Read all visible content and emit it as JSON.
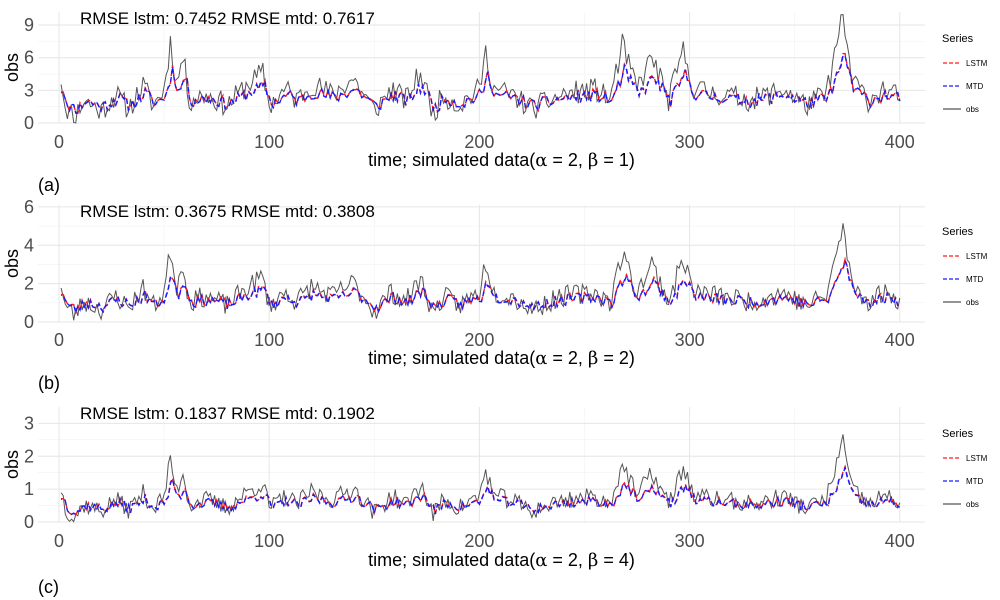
{
  "colors": {
    "lstm": "#ff1a1a",
    "mtd": "#1a1aff",
    "obs": "#555555",
    "grid": "#e6e6e6",
    "grid_minor": "#f2f2f2",
    "axis_text": "#4d4d4d"
  },
  "legend": {
    "title": "Series",
    "items": [
      "LSTM",
      "MTD",
      "obs"
    ]
  },
  "chart_data": [
    {
      "type": "line",
      "panel_label": "(a)",
      "annotation": "RMSE lstm: 0.7452 RMSE mtd: 0.7617",
      "xlabel_parts": [
        "time; simulated data(",
        "α",
        " = 2,  ",
        "β",
        " = 1)"
      ],
      "ylabel": "obs",
      "xlim": [
        -10,
        412
      ],
      "ylim": [
        0,
        10.2
      ],
      "xticks": [
        0,
        100,
        200,
        300,
        400
      ],
      "yticks": [
        0,
        3,
        6,
        9
      ],
      "grid": true,
      "legend_position": "right",
      "x_range": [
        1,
        400
      ],
      "obs_keyframes": [
        [
          1,
          4.0
        ],
        [
          3,
          1.5
        ],
        [
          7,
          0.3
        ],
        [
          12,
          2.0
        ],
        [
          20,
          1.0
        ],
        [
          27,
          2.5
        ],
        [
          33,
          1.2
        ],
        [
          40,
          3.3
        ],
        [
          45,
          1.5
        ],
        [
          50,
          3.0
        ],
        [
          53,
          7.3
        ],
        [
          56,
          3.5
        ],
        [
          59,
          6.0
        ],
        [
          62,
          2.0
        ],
        [
          70,
          2.5
        ],
        [
          80,
          1.5
        ],
        [
          90,
          3.5
        ],
        [
          97,
          4.5
        ],
        [
          100,
          1.5
        ],
        [
          108,
          3.0
        ],
        [
          113,
          2.0
        ],
        [
          120,
          3.5
        ],
        [
          130,
          2.5
        ],
        [
          140,
          4.0
        ],
        [
          150,
          1.0
        ],
        [
          158,
          3.0
        ],
        [
          165,
          2.0
        ],
        [
          172,
          4.5
        ],
        [
          178,
          0.8
        ],
        [
          183,
          2.5
        ],
        [
          190,
          1.5
        ],
        [
          200,
          3.0
        ],
        [
          203,
          6.3
        ],
        [
          207,
          3.0
        ],
        [
          215,
          2.5
        ],
        [
          225,
          1.2
        ],
        [
          240,
          2.5
        ],
        [
          255,
          3.0
        ],
        [
          262,
          2.0
        ],
        [
          268,
          7.0
        ],
        [
          275,
          3.0
        ],
        [
          282,
          6.0
        ],
        [
          290,
          2.0
        ],
        [
          297,
          6.5
        ],
        [
          302,
          3.0
        ],
        [
          315,
          2.5
        ],
        [
          330,
          2.0
        ],
        [
          345,
          3.0
        ],
        [
          355,
          1.5
        ],
        [
          365,
          2.5
        ],
        [
          373,
          9.7
        ],
        [
          377,
          4.0
        ],
        [
          385,
          2.0
        ],
        [
          392,
          3.0
        ],
        [
          400,
          2.2
        ]
      ],
      "noise_amp": 1.1,
      "floor": 0.0,
      "seed": 11,
      "pred_scale": 0.55,
      "pred_offset": 0.9
    },
    {
      "type": "line",
      "panel_label": "(b)",
      "annotation": "RMSE lstm: 0.3675 RMSE mtd: 0.3808",
      "xlabel_parts": [
        "time; simulated data(",
        "α",
        " = 2,  ",
        "β",
        " = 2)"
      ],
      "ylabel": "obs",
      "xlim": [
        -10,
        412
      ],
      "ylim": [
        0,
        6.1
      ],
      "xticks": [
        0,
        100,
        200,
        300,
        400
      ],
      "yticks": [
        0,
        2,
        4,
        6
      ],
      "grid": true,
      "legend_position": "right",
      "x_range": [
        1,
        400
      ],
      "obs_keyframes": [
        [
          1,
          2.0
        ],
        [
          3,
          0.8
        ],
        [
          7,
          0.3
        ],
        [
          12,
          1.0
        ],
        [
          20,
          0.6
        ],
        [
          27,
          1.3
        ],
        [
          33,
          0.7
        ],
        [
          40,
          1.7
        ],
        [
          45,
          0.8
        ],
        [
          50,
          1.5
        ],
        [
          53,
          3.7
        ],
        [
          56,
          1.8
        ],
        [
          59,
          3.0
        ],
        [
          62,
          1.0
        ],
        [
          70,
          1.3
        ],
        [
          80,
          0.8
        ],
        [
          90,
          1.8
        ],
        [
          97,
          2.3
        ],
        [
          100,
          0.8
        ],
        [
          108,
          1.5
        ],
        [
          113,
          1.0
        ],
        [
          120,
          1.8
        ],
        [
          130,
          1.3
        ],
        [
          140,
          2.0
        ],
        [
          150,
          0.5
        ],
        [
          158,
          1.5
        ],
        [
          165,
          1.0
        ],
        [
          172,
          2.2
        ],
        [
          178,
          0.4
        ],
        [
          183,
          1.3
        ],
        [
          190,
          0.8
        ],
        [
          200,
          1.5
        ],
        [
          203,
          3.1
        ],
        [
          207,
          1.5
        ],
        [
          215,
          1.3
        ],
        [
          225,
          0.6
        ],
        [
          240,
          1.3
        ],
        [
          255,
          1.5
        ],
        [
          262,
          1.0
        ],
        [
          268,
          3.5
        ],
        [
          275,
          1.5
        ],
        [
          282,
          3.0
        ],
        [
          290,
          1.0
        ],
        [
          297,
          3.3
        ],
        [
          302,
          1.5
        ],
        [
          315,
          1.3
        ],
        [
          330,
          1.0
        ],
        [
          345,
          1.5
        ],
        [
          355,
          0.8
        ],
        [
          365,
          1.3
        ],
        [
          373,
          4.9
        ],
        [
          377,
          2.0
        ],
        [
          385,
          1.0
        ],
        [
          392,
          1.5
        ],
        [
          400,
          1.1
        ]
      ],
      "noise_amp": 0.55,
      "floor": 0.0,
      "seed": 23,
      "pred_scale": 0.55,
      "pred_offset": 0.45
    },
    {
      "type": "line",
      "panel_label": "(c)",
      "annotation": "RMSE lstm: 0.1837 RMSE mtd: 0.1902",
      "xlabel_parts": [
        "time; simulated data(",
        "α",
        " = 2,  ",
        "β",
        " = 4)"
      ],
      "ylabel": "obs",
      "xlim": [
        -10,
        412
      ],
      "ylim": [
        0,
        3.5
      ],
      "xticks": [
        0,
        100,
        200,
        300,
        400
      ],
      "yticks": [
        0,
        1,
        2,
        3
      ],
      "grid": true,
      "legend_position": "right",
      "x_range": [
        1,
        400
      ],
      "obs_keyframes": [
        [
          1,
          1.0
        ],
        [
          3,
          0.4
        ],
        [
          7,
          0.1
        ],
        [
          12,
          0.5
        ],
        [
          20,
          0.3
        ],
        [
          27,
          0.65
        ],
        [
          33,
          0.35
        ],
        [
          40,
          0.85
        ],
        [
          45,
          0.4
        ],
        [
          50,
          0.75
        ],
        [
          53,
          1.85
        ],
        [
          56,
          0.9
        ],
        [
          59,
          1.5
        ],
        [
          62,
          0.5
        ],
        [
          70,
          0.65
        ],
        [
          80,
          0.4
        ],
        [
          90,
          0.9
        ],
        [
          97,
          1.15
        ],
        [
          100,
          0.4
        ],
        [
          108,
          0.75
        ],
        [
          113,
          0.5
        ],
        [
          120,
          0.9
        ],
        [
          130,
          0.65
        ],
        [
          140,
          1.0
        ],
        [
          150,
          0.25
        ],
        [
          158,
          0.75
        ],
        [
          165,
          0.5
        ],
        [
          172,
          1.1
        ],
        [
          178,
          0.2
        ],
        [
          183,
          0.65
        ],
        [
          190,
          0.4
        ],
        [
          200,
          0.75
        ],
        [
          203,
          1.55
        ],
        [
          207,
          0.75
        ],
        [
          215,
          0.65
        ],
        [
          225,
          0.3
        ],
        [
          240,
          0.65
        ],
        [
          255,
          0.75
        ],
        [
          262,
          0.5
        ],
        [
          268,
          1.75
        ],
        [
          275,
          0.75
        ],
        [
          282,
          1.5
        ],
        [
          290,
          0.5
        ],
        [
          297,
          1.65
        ],
        [
          302,
          0.75
        ],
        [
          315,
          0.65
        ],
        [
          330,
          0.5
        ],
        [
          345,
          0.75
        ],
        [
          355,
          0.4
        ],
        [
          365,
          0.65
        ],
        [
          373,
          2.45
        ],
        [
          377,
          1.0
        ],
        [
          385,
          0.5
        ],
        [
          392,
          0.75
        ],
        [
          400,
          0.55
        ]
      ],
      "noise_amp": 0.28,
      "floor": 0.0,
      "seed": 37,
      "pred_scale": 0.55,
      "pred_offset": 0.22
    }
  ]
}
